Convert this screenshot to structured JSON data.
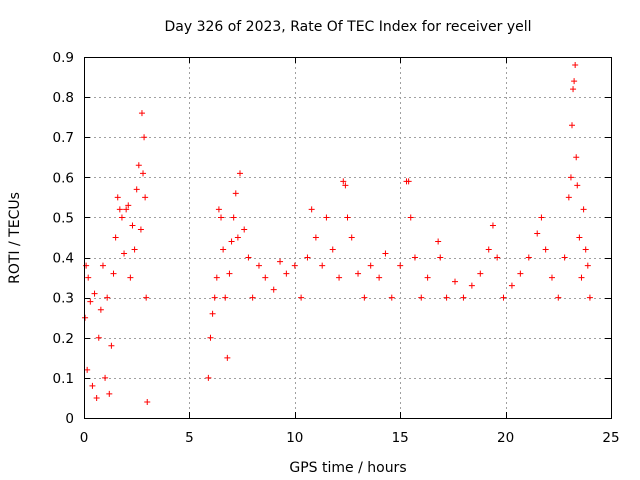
{
  "chart_data": {
    "type": "scatter",
    "title": "Day 326 of 2023, Rate Of TEC Index for receiver yell",
    "xlabel": "GPS time / hours",
    "ylabel": "ROTI / TECUs",
    "xlim": [
      0,
      25
    ],
    "ylim": [
      0,
      0.9
    ],
    "xticks": [
      "0",
      "5",
      "10",
      "15",
      "20",
      "25"
    ],
    "yticks": [
      "0",
      "0.1",
      "0.2",
      "0.3",
      "0.4",
      "0.5",
      "0.6",
      "0.7",
      "0.8",
      "0.9"
    ],
    "grid": true,
    "marker": "plus",
    "colors": {
      "series": "#ff0000"
    },
    "series": [
      {
        "points": [
          [
            0.05,
            0.25
          ],
          [
            0.1,
            0.38
          ],
          [
            0.15,
            0.12
          ],
          [
            0.2,
            0.35
          ],
          [
            0.3,
            0.29
          ],
          [
            0.4,
            0.08
          ],
          [
            0.5,
            0.31
          ],
          [
            0.6,
            0.05
          ],
          [
            0.7,
            0.2
          ],
          [
            0.8,
            0.27
          ],
          [
            0.9,
            0.38
          ],
          [
            1.0,
            0.1
          ],
          [
            1.1,
            0.3
          ],
          [
            1.2,
            0.06
          ],
          [
            1.3,
            0.18
          ],
          [
            1.4,
            0.36
          ],
          [
            1.5,
            0.45
          ],
          [
            1.6,
            0.55
          ],
          [
            1.7,
            0.52
          ],
          [
            1.8,
            0.5
          ],
          [
            1.9,
            0.41
          ],
          [
            2.0,
            0.52
          ],
          [
            2.1,
            0.53
          ],
          [
            2.2,
            0.35
          ],
          [
            2.3,
            0.48
          ],
          [
            2.4,
            0.42
          ],
          [
            2.5,
            0.57
          ],
          [
            2.6,
            0.63
          ],
          [
            2.7,
            0.47
          ],
          [
            2.75,
            0.76
          ],
          [
            2.8,
            0.61
          ],
          [
            2.85,
            0.7
          ],
          [
            2.9,
            0.55
          ],
          [
            2.95,
            0.3
          ],
          [
            3.0,
            0.04
          ],
          [
            5.9,
            0.1
          ],
          [
            6.0,
            0.2
          ],
          [
            6.1,
            0.26
          ],
          [
            6.2,
            0.3
          ],
          [
            6.3,
            0.35
          ],
          [
            6.4,
            0.52
          ],
          [
            6.5,
            0.5
          ],
          [
            6.6,
            0.42
          ],
          [
            6.7,
            0.3
          ],
          [
            6.8,
            0.15
          ],
          [
            6.9,
            0.36
          ],
          [
            7.0,
            0.44
          ],
          [
            7.1,
            0.5
          ],
          [
            7.2,
            0.56
          ],
          [
            7.3,
            0.45
          ],
          [
            7.4,
            0.61
          ],
          [
            7.6,
            0.47
          ],
          [
            7.8,
            0.4
          ],
          [
            8.0,
            0.3
          ],
          [
            8.3,
            0.38
          ],
          [
            8.6,
            0.35
          ],
          [
            9.0,
            0.32
          ],
          [
            9.3,
            0.39
          ],
          [
            9.6,
            0.36
          ],
          [
            10.0,
            0.38
          ],
          [
            10.3,
            0.3
          ],
          [
            10.6,
            0.4
          ],
          [
            10.8,
            0.52
          ],
          [
            11.0,
            0.45
          ],
          [
            11.3,
            0.38
          ],
          [
            11.5,
            0.5
          ],
          [
            11.8,
            0.42
          ],
          [
            12.1,
            0.35
          ],
          [
            12.3,
            0.59
          ],
          [
            12.4,
            0.58
          ],
          [
            12.5,
            0.5
          ],
          [
            12.7,
            0.45
          ],
          [
            13.0,
            0.36
          ],
          [
            13.3,
            0.3
          ],
          [
            13.6,
            0.38
          ],
          [
            14.0,
            0.35
          ],
          [
            14.3,
            0.41
          ],
          [
            14.6,
            0.3
          ],
          [
            15.0,
            0.38
          ],
          [
            15.3,
            0.59
          ],
          [
            15.4,
            0.59
          ],
          [
            15.5,
            0.5
          ],
          [
            15.7,
            0.4
          ],
          [
            16.0,
            0.3
          ],
          [
            16.3,
            0.35
          ],
          [
            16.8,
            0.44
          ],
          [
            16.9,
            0.4
          ],
          [
            17.2,
            0.3
          ],
          [
            17.6,
            0.34
          ],
          [
            18.0,
            0.3
          ],
          [
            18.4,
            0.33
          ],
          [
            18.8,
            0.36
          ],
          [
            19.2,
            0.42
          ],
          [
            19.4,
            0.48
          ],
          [
            19.6,
            0.4
          ],
          [
            19.9,
            0.3
          ],
          [
            20.3,
            0.33
          ],
          [
            20.7,
            0.36
          ],
          [
            21.1,
            0.4
          ],
          [
            21.5,
            0.46
          ],
          [
            21.7,
            0.5
          ],
          [
            21.9,
            0.42
          ],
          [
            22.2,
            0.35
          ],
          [
            22.5,
            0.3
          ],
          [
            22.8,
            0.4
          ],
          [
            23.0,
            0.55
          ],
          [
            23.1,
            0.6
          ],
          [
            23.15,
            0.73
          ],
          [
            23.2,
            0.82
          ],
          [
            23.25,
            0.84
          ],
          [
            23.3,
            0.88
          ],
          [
            23.35,
            0.65
          ],
          [
            23.4,
            0.58
          ],
          [
            23.5,
            0.45
          ],
          [
            23.6,
            0.35
          ],
          [
            23.7,
            0.52
          ],
          [
            23.8,
            0.42
          ],
          [
            23.9,
            0.38
          ],
          [
            24.0,
            0.3
          ]
        ]
      }
    ]
  }
}
